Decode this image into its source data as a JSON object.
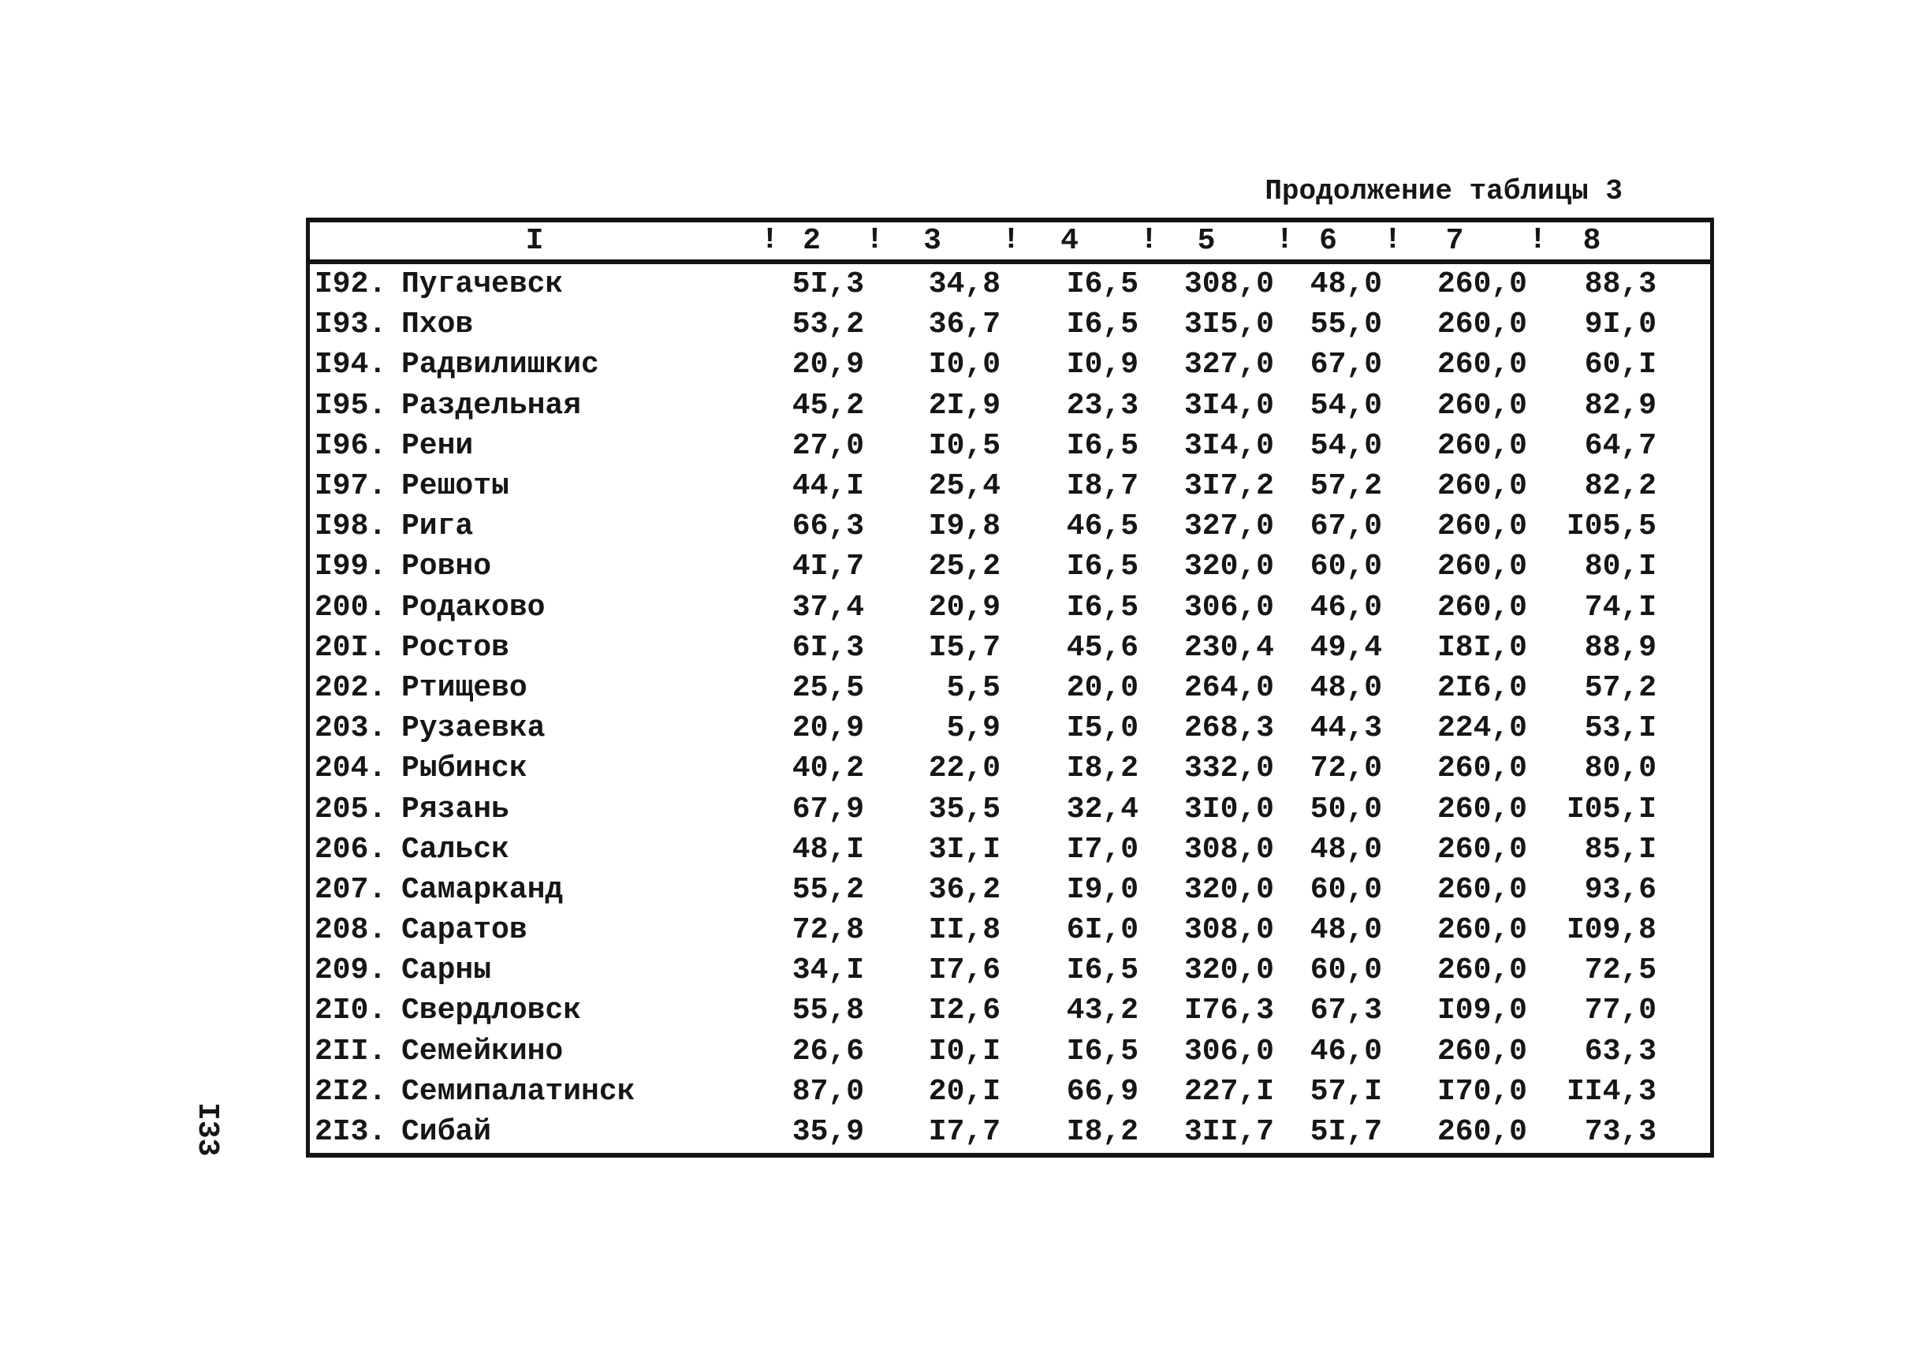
{
  "page": {
    "title": "Продолжение таблицы 3",
    "page_number": "I33"
  },
  "table": {
    "separator": "!",
    "headers": [
      "I",
      "2",
      "3",
      "4",
      "5",
      "6",
      "7",
      "8"
    ],
    "rows": [
      {
        "num": "I92.",
        "name": "Пугачевск",
        "values": [
          "5I,3",
          "34,8",
          "I6,5",
          "308,0",
          "48,0",
          "260,0",
          "88,3"
        ]
      },
      {
        "num": "I93.",
        "name": "Пхов",
        "values": [
          "53,2",
          "36,7",
          "I6,5",
          "3I5,0",
          "55,0",
          "260,0",
          "9I,0"
        ]
      },
      {
        "num": "I94.",
        "name": "Радвилишкис",
        "values": [
          "20,9",
          "I0,0",
          "I0,9",
          "327,0",
          "67,0",
          "260,0",
          "60,I"
        ]
      },
      {
        "num": "I95.",
        "name": "Раздельная",
        "values": [
          "45,2",
          "2I,9",
          "23,3",
          "3I4,0",
          "54,0",
          "260,0",
          "82,9"
        ]
      },
      {
        "num": "I96.",
        "name": "Рени",
        "values": [
          "27,0",
          "I0,5",
          "I6,5",
          "3I4,0",
          "54,0",
          "260,0",
          "64,7"
        ]
      },
      {
        "num": "I97.",
        "name": "Решоты",
        "values": [
          "44,I",
          "25,4",
          "I8,7",
          "3I7,2",
          "57,2",
          "260,0",
          "82,2"
        ]
      },
      {
        "num": "I98.",
        "name": "Рига",
        "values": [
          "66,3",
          "I9,8",
          "46,5",
          "327,0",
          "67,0",
          "260,0",
          "I05,5"
        ]
      },
      {
        "num": "I99.",
        "name": "Ровно",
        "values": [
          "4I,7",
          "25,2",
          "I6,5",
          "320,0",
          "60,0",
          "260,0",
          "80,I"
        ]
      },
      {
        "num": "200.",
        "name": "Родаково",
        "values": [
          "37,4",
          "20,9",
          "I6,5",
          "306,0",
          "46,0",
          "260,0",
          "74,I"
        ]
      },
      {
        "num": "20I.",
        "name": "Ростов",
        "values": [
          "6I,3",
          "I5,7",
          "45,6",
          "230,4",
          "49,4",
          "I8I,0",
          "88,9"
        ]
      },
      {
        "num": "202.",
        "name": "Ртищево",
        "values": [
          "25,5",
          "5,5",
          "20,0",
          "264,0",
          "48,0",
          "2I6,0",
          "57,2"
        ]
      },
      {
        "num": "203.",
        "name": "Рузаевка",
        "values": [
          "20,9",
          "5,9",
          "I5,0",
          "268,3",
          "44,3",
          "224,0",
          "53,I"
        ]
      },
      {
        "num": "204.",
        "name": "Рыбинск",
        "values": [
          "40,2",
          "22,0",
          "I8,2",
          "332,0",
          "72,0",
          "260,0",
          "80,0"
        ]
      },
      {
        "num": "205.",
        "name": "Рязань",
        "values": [
          "67,9",
          "35,5",
          "32,4",
          "3I0,0",
          "50,0",
          "260,0",
          "I05,I"
        ]
      },
      {
        "num": "206.",
        "name": "Сальск",
        "values": [
          "48,I",
          "3I,I",
          "I7,0",
          "308,0",
          "48,0",
          "260,0",
          "85,I"
        ]
      },
      {
        "num": "207.",
        "name": "Самарканд",
        "values": [
          "55,2",
          "36,2",
          "I9,0",
          "320,0",
          "60,0",
          "260,0",
          "93,6"
        ]
      },
      {
        "num": "208.",
        "name": "Саратов",
        "values": [
          "72,8",
          "II,8",
          "6I,0",
          "308,0",
          "48,0",
          "260,0",
          "I09,8"
        ]
      },
      {
        "num": "209.",
        "name": "Сарны",
        "values": [
          "34,I",
          "I7,6",
          "I6,5",
          "320,0",
          "60,0",
          "260,0",
          "72,5"
        ]
      },
      {
        "num": "2I0.",
        "name": "Свердловск",
        "values": [
          "55,8",
          "I2,6",
          "43,2",
          "I76,3",
          "67,3",
          "I09,0",
          "77,0"
        ]
      },
      {
        "num": "2II.",
        "name": "Семейкино",
        "values": [
          "26,6",
          "I0,I",
          "I6,5",
          "306,0",
          "46,0",
          "260,0",
          "63,3"
        ]
      },
      {
        "num": "2I2.",
        "name": "Семипалатинск",
        "values": [
          "87,0",
          "20,I",
          "66,9",
          "227,I",
          "57,I",
          "I70,0",
          "II4,3"
        ]
      },
      {
        "num": "2I3.",
        "name": "Сибай",
        "values": [
          "35,9",
          "I7,7",
          "I8,2",
          "3II,7",
          "5I,7",
          "260,0",
          "73,3"
        ]
      }
    ]
  }
}
